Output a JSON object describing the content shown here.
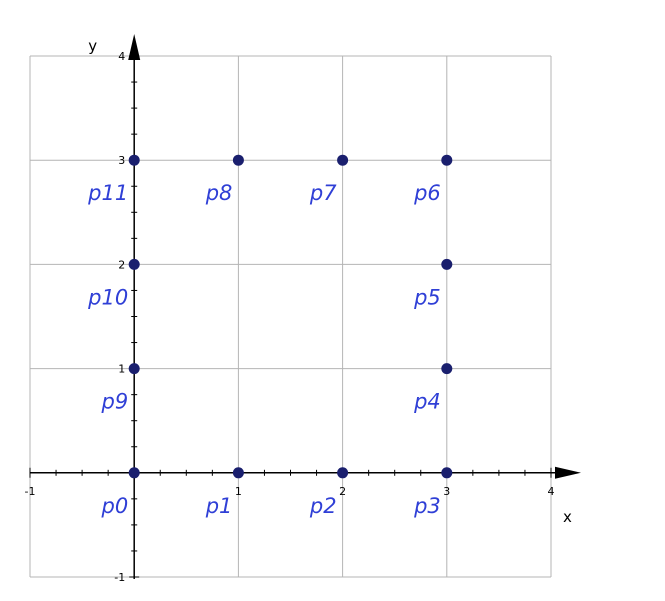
{
  "chart_data": {
    "type": "scatter",
    "xlabel": "x",
    "ylabel": "y",
    "xlim": [
      -1,
      4
    ],
    "ylim": [
      -1,
      4
    ],
    "grid": true,
    "x_ticks": [
      "-1",
      "1",
      "2",
      "3",
      "4"
    ],
    "y_ticks": [
      "-1",
      "1",
      "2",
      "3",
      "4"
    ],
    "colors": {
      "point": "#1a1f6e",
      "label": "#2f3fd6",
      "grid": "#b4b4b4",
      "axis": "#000000"
    },
    "points": [
      {
        "label": "p0",
        "x": 0,
        "y": 0
      },
      {
        "label": "p1",
        "x": 1,
        "y": 0
      },
      {
        "label": "p2",
        "x": 2,
        "y": 0
      },
      {
        "label": "p3",
        "x": 3,
        "y": 0
      },
      {
        "label": "p4",
        "x": 3,
        "y": 1
      },
      {
        "label": "p5",
        "x": 3,
        "y": 2
      },
      {
        "label": "p6",
        "x": 3,
        "y": 3
      },
      {
        "label": "p7",
        "x": 2,
        "y": 3
      },
      {
        "label": "p8",
        "x": 1,
        "y": 3
      },
      {
        "label": "p9",
        "x": 0,
        "y": 1
      },
      {
        "label": "p10",
        "x": 0,
        "y": 2
      },
      {
        "label": "p11",
        "x": 0,
        "y": 3
      }
    ]
  }
}
